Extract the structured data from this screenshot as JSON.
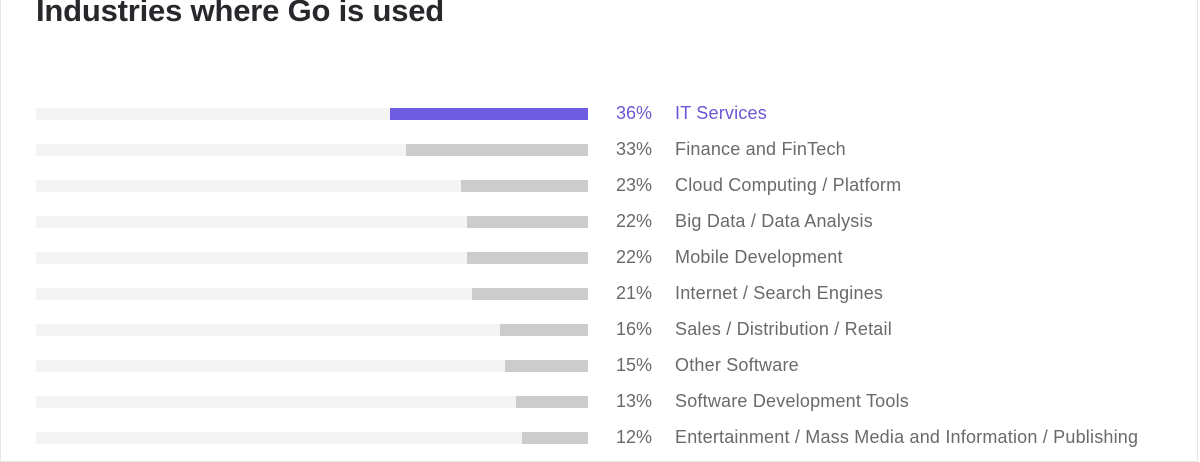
{
  "header": {
    "title": "Industries where Go is used"
  },
  "colors": {
    "highlight": "#6e5de0",
    "bar": "#cccccc",
    "track": "#f4f4f4",
    "text": "#6a6a6a"
  },
  "chart_data": {
    "type": "bar",
    "orientation": "horizontal",
    "title": "Industries where Go is used",
    "unit": "%",
    "xlim": [
      0,
      100
    ],
    "highlighted_category": "IT Services",
    "categories": [
      "IT Services",
      "Finance and FinTech",
      "Cloud Computing / Platform",
      "Big Data / Data Analysis",
      "Mobile Development",
      "Internet / Search Engines",
      "Sales / Distribution / Retail",
      "Other Software",
      "Software Development Tools",
      "Entertainment / Mass Media and Information / Publishing"
    ],
    "values": [
      36,
      33,
      23,
      22,
      22,
      21,
      16,
      15,
      13,
      12
    ],
    "value_labels": [
      "36%",
      "33%",
      "23%",
      "22%",
      "22%",
      "21%",
      "16%",
      "15%",
      "13%",
      "12%"
    ]
  }
}
